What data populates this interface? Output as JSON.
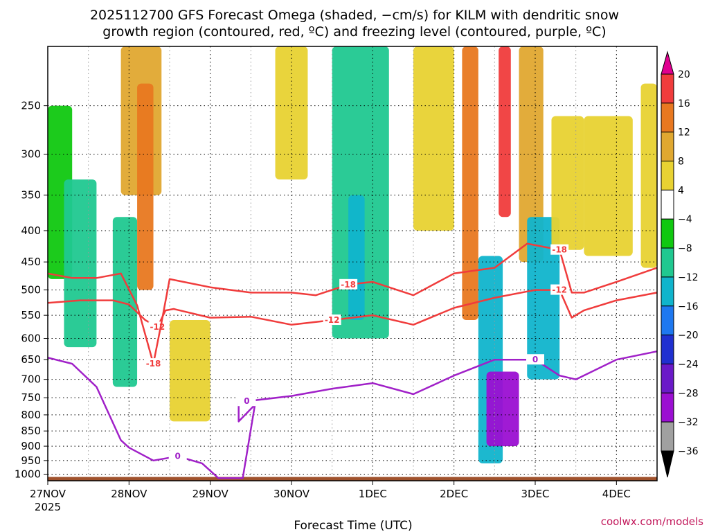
{
  "title": {
    "line1": "2025112700 GFS Forecast Omega (shaded, −cm/s) for KILM with dendritic snow",
    "line2": "growth region (contoured, red, ºC) and freezing level (contoured, purple, ºC)"
  },
  "footer": {
    "credit": "coolwx.com/models"
  },
  "chart_data": {
    "type": "time-height",
    "title": "2025112700 GFS Forecast Omega (shaded, −cm/s) for KILM with dendritic snow growth region (contoured, red, ºC) and freezing level (contoured, purple, ºC)",
    "xlabel": "Forecast Time (UTC)",
    "ylabel": "",
    "x_ticks": [
      "27NOV",
      "28NOV",
      "29NOV",
      "30NOV",
      "1DEC",
      "2DEC",
      "3DEC",
      "4DEC"
    ],
    "x_year_label": "2025",
    "xlim_days": [
      0,
      7.5
    ],
    "y_ticks": [
      250,
      300,
      350,
      400,
      450,
      500,
      550,
      600,
      650,
      700,
      750,
      800,
      850,
      900,
      950,
      1000
    ],
    "y_tick_labels": [
      "250",
      "300",
      "350",
      "400",
      "450",
      "500",
      "550",
      "600",
      "650",
      "700",
      "750",
      "800",
      "850",
      "900",
      "950",
      "1000"
    ],
    "ylim_hpa": [
      1025,
      200
    ],
    "grid": true,
    "colorbar": {
      "labels": [
        "20",
        "16",
        "12",
        "8",
        "4",
        "−4",
        "−8",
        "−12",
        "−16",
        "−20",
        "−24",
        "−28",
        "−32",
        "−36"
      ],
      "bin_colors": [
        "#e00090",
        "#f03c3c",
        "#e87820",
        "#e0a830",
        "#e8d232",
        "#ffffff",
        "#10c810",
        "#20c890",
        "#10b4cc",
        "#1e78f0",
        "#2030d0",
        "#6a1ac8",
        "#9b0fd2",
        "#a0a0a0",
        "#000000"
      ]
    },
    "omega_features": [
      {
        "day_start": 0.0,
        "day_end": 0.3,
        "p_top": 250,
        "p_bottom": 480,
        "value": -6
      },
      {
        "day_start": 0.2,
        "day_end": 0.6,
        "p_top": 330,
        "p_bottom": 620,
        "value": -8
      },
      {
        "day_start": 0.8,
        "day_end": 1.1,
        "p_top": 380,
        "p_bottom": 720,
        "value": -8
      },
      {
        "day_start": 0.9,
        "day_end": 1.4,
        "p_top": 200,
        "p_bottom": 350,
        "value": 10
      },
      {
        "day_start": 1.1,
        "day_end": 1.3,
        "p_top": 230,
        "p_bottom": 500,
        "value": 14
      },
      {
        "day_start": 1.5,
        "day_end": 2.0,
        "p_top": 560,
        "p_bottom": 820,
        "value": 6
      },
      {
        "day_start": 2.8,
        "day_end": 3.2,
        "p_top": 200,
        "p_bottom": 330,
        "value": 6
      },
      {
        "day_start": 3.5,
        "day_end": 4.2,
        "p_top": 200,
        "p_bottom": 600,
        "value": -10
      },
      {
        "day_start": 3.7,
        "day_end": 3.9,
        "p_top": 350,
        "p_bottom": 560,
        "value": -14
      },
      {
        "day_start": 4.5,
        "day_end": 5.0,
        "p_top": 200,
        "p_bottom": 400,
        "value": 6
      },
      {
        "day_start": 5.1,
        "day_end": 5.3,
        "p_top": 200,
        "p_bottom": 560,
        "value": 14
      },
      {
        "day_start": 5.3,
        "day_end": 5.6,
        "p_top": 440,
        "p_bottom": 960,
        "value": -12
      },
      {
        "day_start": 5.4,
        "day_end": 5.8,
        "p_top": 680,
        "p_bottom": 900,
        "value": -28
      },
      {
        "day_start": 5.55,
        "day_end": 5.7,
        "p_top": 200,
        "p_bottom": 380,
        "value": 18
      },
      {
        "day_start": 5.8,
        "day_end": 6.1,
        "p_top": 200,
        "p_bottom": 450,
        "value": 10
      },
      {
        "day_start": 5.9,
        "day_end": 6.3,
        "p_top": 380,
        "p_bottom": 700,
        "value": -12
      },
      {
        "day_start": 6.2,
        "day_end": 6.6,
        "p_top": 260,
        "p_bottom": 430,
        "value": 6
      },
      {
        "day_start": 6.6,
        "day_end": 7.2,
        "p_top": 260,
        "p_bottom": 440,
        "value": 5
      },
      {
        "day_start": 7.3,
        "day_end": 7.5,
        "p_top": 230,
        "p_bottom": 460,
        "value": 6
      }
    ],
    "series": [
      {
        "name": "-12 °C",
        "color": "#f03c3c",
        "days": [
          0,
          0.4,
          0.8,
          1.0,
          1.2,
          1.35,
          1.45,
          1.55,
          2.0,
          2.5,
          3.0,
          3.5,
          4.0,
          4.5,
          5.0,
          5.5,
          6.0,
          6.3,
          6.45,
          6.6,
          7.0,
          7.5
        ],
        "pressure": [
          525,
          520,
          520,
          528,
          560,
          575,
          540,
          537,
          555,
          553,
          570,
          560,
          550,
          570,
          535,
          515,
          500,
          500,
          555,
          540,
          520,
          505
        ]
      },
      {
        "name": "-18 °C",
        "color": "#f03c3c",
        "days": [
          0,
          0.3,
          0.6,
          0.9,
          1.1,
          1.3,
          1.4,
          1.5,
          2.0,
          2.5,
          3.0,
          3.3,
          3.7,
          4.0,
          4.5,
          5.0,
          5.5,
          5.9,
          6.3,
          6.45,
          6.6,
          7.0,
          7.5
        ],
        "pressure": [
          470,
          478,
          478,
          470,
          530,
          660,
          565,
          480,
          495,
          505,
          505,
          510,
          490,
          485,
          510,
          470,
          460,
          420,
          430,
          505,
          505,
          485,
          460
        ]
      },
      {
        "name": "0 °C",
        "color": "#a020c8",
        "days": [
          0,
          0.3,
          0.6,
          0.9,
          1.0,
          1.3,
          1.6,
          1.9,
          2.1,
          2.4,
          2.55,
          2.35,
          2.35,
          2.45,
          3.0,
          3.5,
          4.0,
          4.5,
          5.0,
          5.5,
          6.0,
          6.3,
          6.5,
          7.0,
          7.5
        ],
        "pressure": [
          645,
          660,
          720,
          880,
          905,
          950,
          935,
          960,
          1015,
          1015,
          770,
          820,
          765,
          760,
          745,
          725,
          710,
          740,
          690,
          650,
          650,
          690,
          700,
          650,
          630
        ]
      }
    ]
  }
}
